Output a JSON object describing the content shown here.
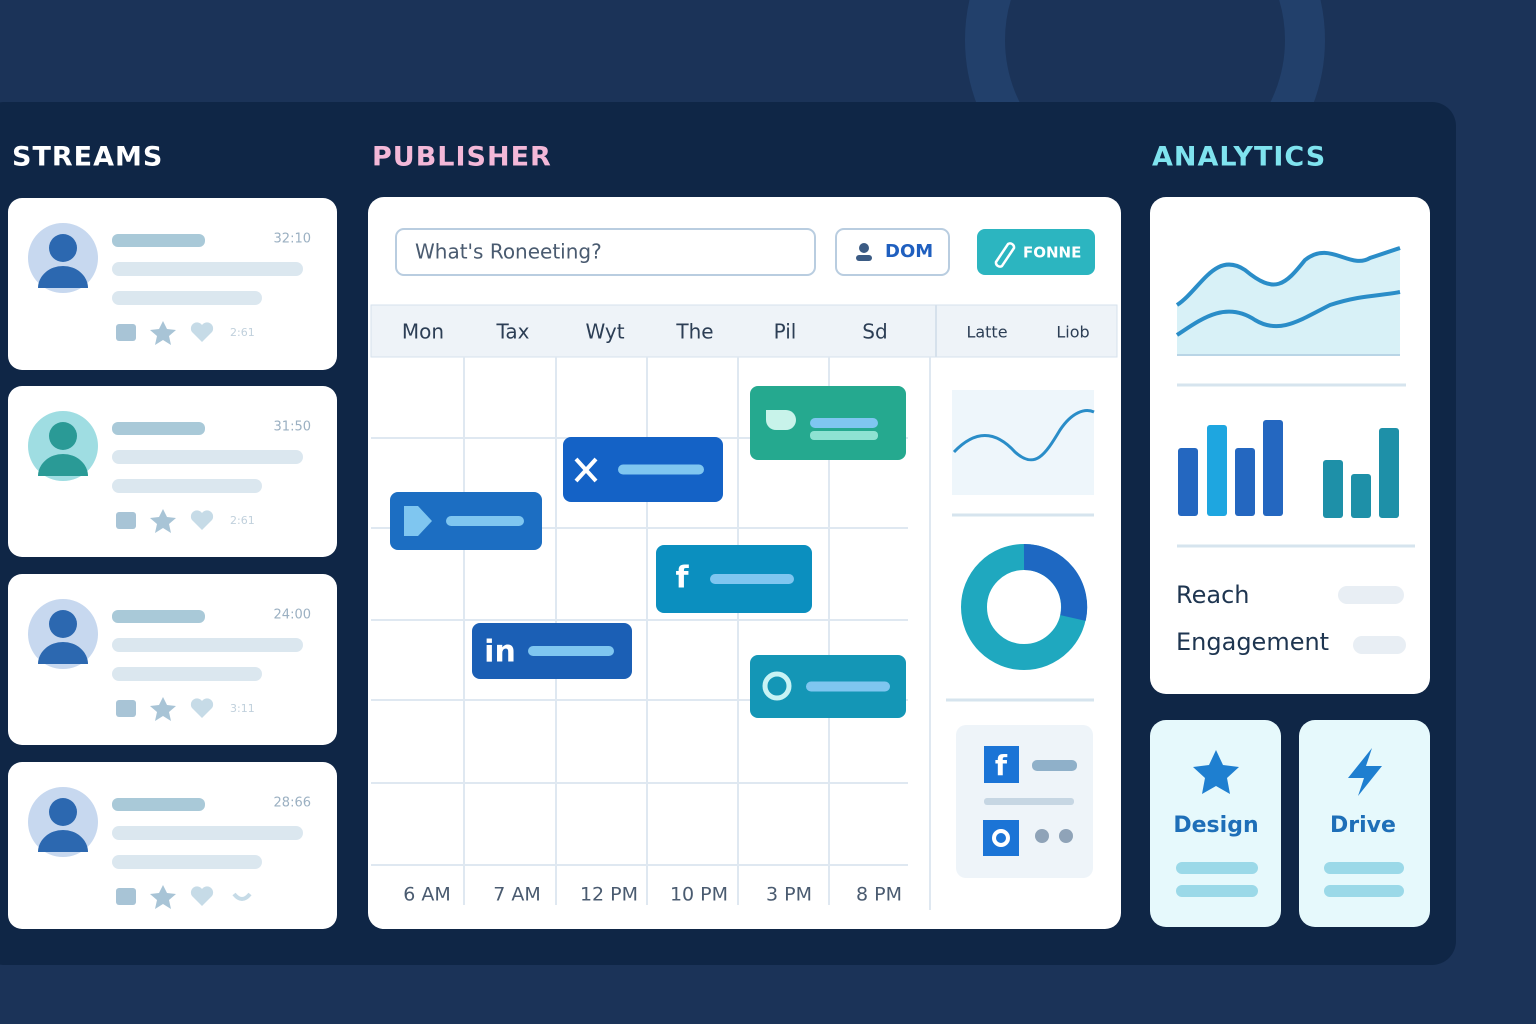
{
  "sections": {
    "streams": "STREAMS",
    "publisher": "PUBLISHER",
    "analytics": "ANALYTICS"
  },
  "streams": [
    {
      "time": "32:10",
      "count": "2:61"
    },
    {
      "time": "31:50",
      "count": "2:61"
    },
    {
      "time": "24:00",
      "count": "3:11"
    },
    {
      "time": "28:66"
    }
  ],
  "publisher": {
    "placeholder": "What's Roneeting?",
    "button_1": "DOM",
    "button_2": "FONNE",
    "days": [
      "Mon",
      "Tax",
      "Wyt",
      "The",
      "Pil",
      "Sd"
    ],
    "side_days": [
      "Latte",
      "Liob"
    ],
    "times": [
      "6 AM",
      "7 AM",
      "12 PM",
      "10 PM",
      "3 PM",
      "8 PM"
    ],
    "post_icons": [
      "f",
      "in"
    ],
    "mini_icon": "f"
  },
  "analytics": {
    "metrics": [
      "Reach",
      "Engagement"
    ],
    "tiles": [
      "Design",
      "Drive"
    ]
  }
}
